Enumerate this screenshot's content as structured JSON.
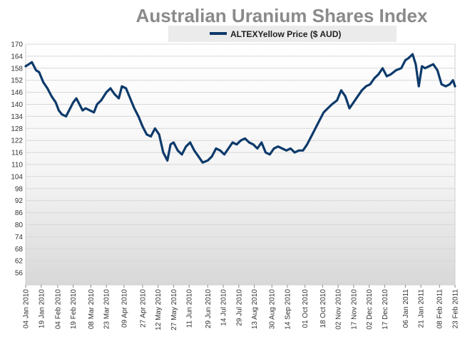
{
  "chart_data": {
    "type": "line",
    "title": "Australian Uranium Shares Index",
    "legend": {
      "position": "top",
      "entries": [
        "ALTEXYellow Price ($ AUD)"
      ]
    },
    "xlabel": "",
    "ylabel": "",
    "ylim": [
      50,
      170
    ],
    "yticks": [
      56,
      62,
      68,
      74,
      80,
      86,
      92,
      98,
      104,
      110,
      116,
      122,
      128,
      134,
      140,
      146,
      152,
      158,
      164,
      170
    ],
    "xticks": [
      "04 Jan 2010",
      "19 Jan 2010",
      "04 Feb 2010",
      "19 Feb 2010",
      "08 Mar 2010",
      "23 Mar 2010",
      "09 Apr 2010",
      "27 Apr 2010",
      "12 May 2010",
      "27 May 2010",
      "11 Jun 2010",
      "29 Jun 2010",
      "14 Jul 2010",
      "29 Jul 2010",
      "13 Aug 2010",
      "30 Aug 2010",
      "14 Sep 2010",
      "01 Oct 2010",
      "18 Oct 2010",
      "02 Nov 2010",
      "17 Nov 2010",
      "02 Dec 2010",
      "17 Dec 2010",
      "06 Jan 2011",
      "21 Jan 2011",
      "08 Feb 2011",
      "23 Feb 2011"
    ],
    "grid": true,
    "colors": {
      "line": "#0d3a6b",
      "grid": "#d8d8d8",
      "title": "#8a8a8a",
      "legend_bg": "#ebebeb",
      "plot_top": "#ffffff",
      "plot_bottom": "#dcdcdc"
    },
    "series": [
      {
        "name": "ALTEXYellow Price ($ AUD)",
        "x": [
          "2010-01-04",
          "2010-01-07",
          "2010-01-10",
          "2010-01-14",
          "2010-01-17",
          "2010-01-21",
          "2010-01-25",
          "2010-01-29",
          "2010-02-02",
          "2010-02-05",
          "2010-02-08",
          "2010-02-12",
          "2010-02-15",
          "2010-02-19",
          "2010-02-22",
          "2010-02-25",
          "2010-02-28",
          "2010-03-03",
          "2010-03-07",
          "2010-03-11",
          "2010-03-14",
          "2010-03-18",
          "2010-03-23",
          "2010-03-27",
          "2010-03-31",
          "2010-04-04",
          "2010-04-07",
          "2010-04-11",
          "2010-04-15",
          "2010-04-19",
          "2010-04-23",
          "2010-04-27",
          "2010-05-01",
          "2010-05-05",
          "2010-05-09",
          "2010-05-13",
          "2010-05-17",
          "2010-05-21",
          "2010-05-24",
          "2010-05-27",
          "2010-05-31",
          "2010-06-04",
          "2010-06-08",
          "2010-06-12",
          "2010-06-16",
          "2010-06-20",
          "2010-06-24",
          "2010-06-29",
          "2010-07-03",
          "2010-07-07",
          "2010-07-11",
          "2010-07-15",
          "2010-07-19",
          "2010-07-23",
          "2010-07-27",
          "2010-07-31",
          "2010-08-04",
          "2010-08-08",
          "2010-08-12",
          "2010-08-16",
          "2010-08-20",
          "2010-08-24",
          "2010-08-28",
          "2010-09-01",
          "2010-09-05",
          "2010-09-09",
          "2010-09-13",
          "2010-09-17",
          "2010-09-21",
          "2010-09-25",
          "2010-09-29",
          "2010-10-03",
          "2010-10-07",
          "2010-10-11",
          "2010-10-15",
          "2010-10-19",
          "2010-10-23",
          "2010-10-27",
          "2010-11-01",
          "2010-11-05",
          "2010-11-09",
          "2010-11-13",
          "2010-11-17",
          "2010-11-21",
          "2010-11-25",
          "2010-11-29",
          "2010-12-03",
          "2010-12-07",
          "2010-12-11",
          "2010-12-15",
          "2010-12-19",
          "2010-12-23",
          "2010-12-28",
          "2011-01-02",
          "2011-01-06",
          "2011-01-09",
          "2011-01-13",
          "2011-01-16",
          "2011-01-19",
          "2011-01-22",
          "2011-01-25",
          "2011-01-29",
          "2011-02-02",
          "2011-02-06",
          "2011-02-10",
          "2011-02-14",
          "2011-02-18",
          "2011-02-21",
          "2011-02-23"
        ],
        "values": [
          159,
          160,
          161,
          157,
          156,
          151,
          148,
          144,
          141,
          137,
          135,
          134,
          137,
          141,
          143,
          140,
          137,
          138,
          137,
          136,
          140,
          142,
          146,
          148,
          145,
          143,
          149,
          148,
          143,
          138,
          134,
          129,
          125,
          124,
          128,
          125,
          116,
          112,
          120,
          121,
          117,
          115,
          119,
          121,
          117,
          114,
          111,
          112,
          114,
          118,
          117,
          115,
          118,
          121,
          120,
          122,
          123,
          121,
          120,
          118,
          121,
          116,
          115,
          118,
          119,
          118,
          117,
          118,
          116,
          117,
          117,
          120,
          124,
          128,
          132,
          136,
          138,
          140,
          142,
          147,
          144,
          138,
          141,
          144,
          147,
          149,
          150,
          153,
          155,
          158,
          154,
          155,
          157,
          158,
          162,
          163,
          165,
          160,
          149,
          159,
          158,
          159,
          160,
          157,
          150,
          149,
          150,
          152,
          149
        ]
      }
    ]
  }
}
